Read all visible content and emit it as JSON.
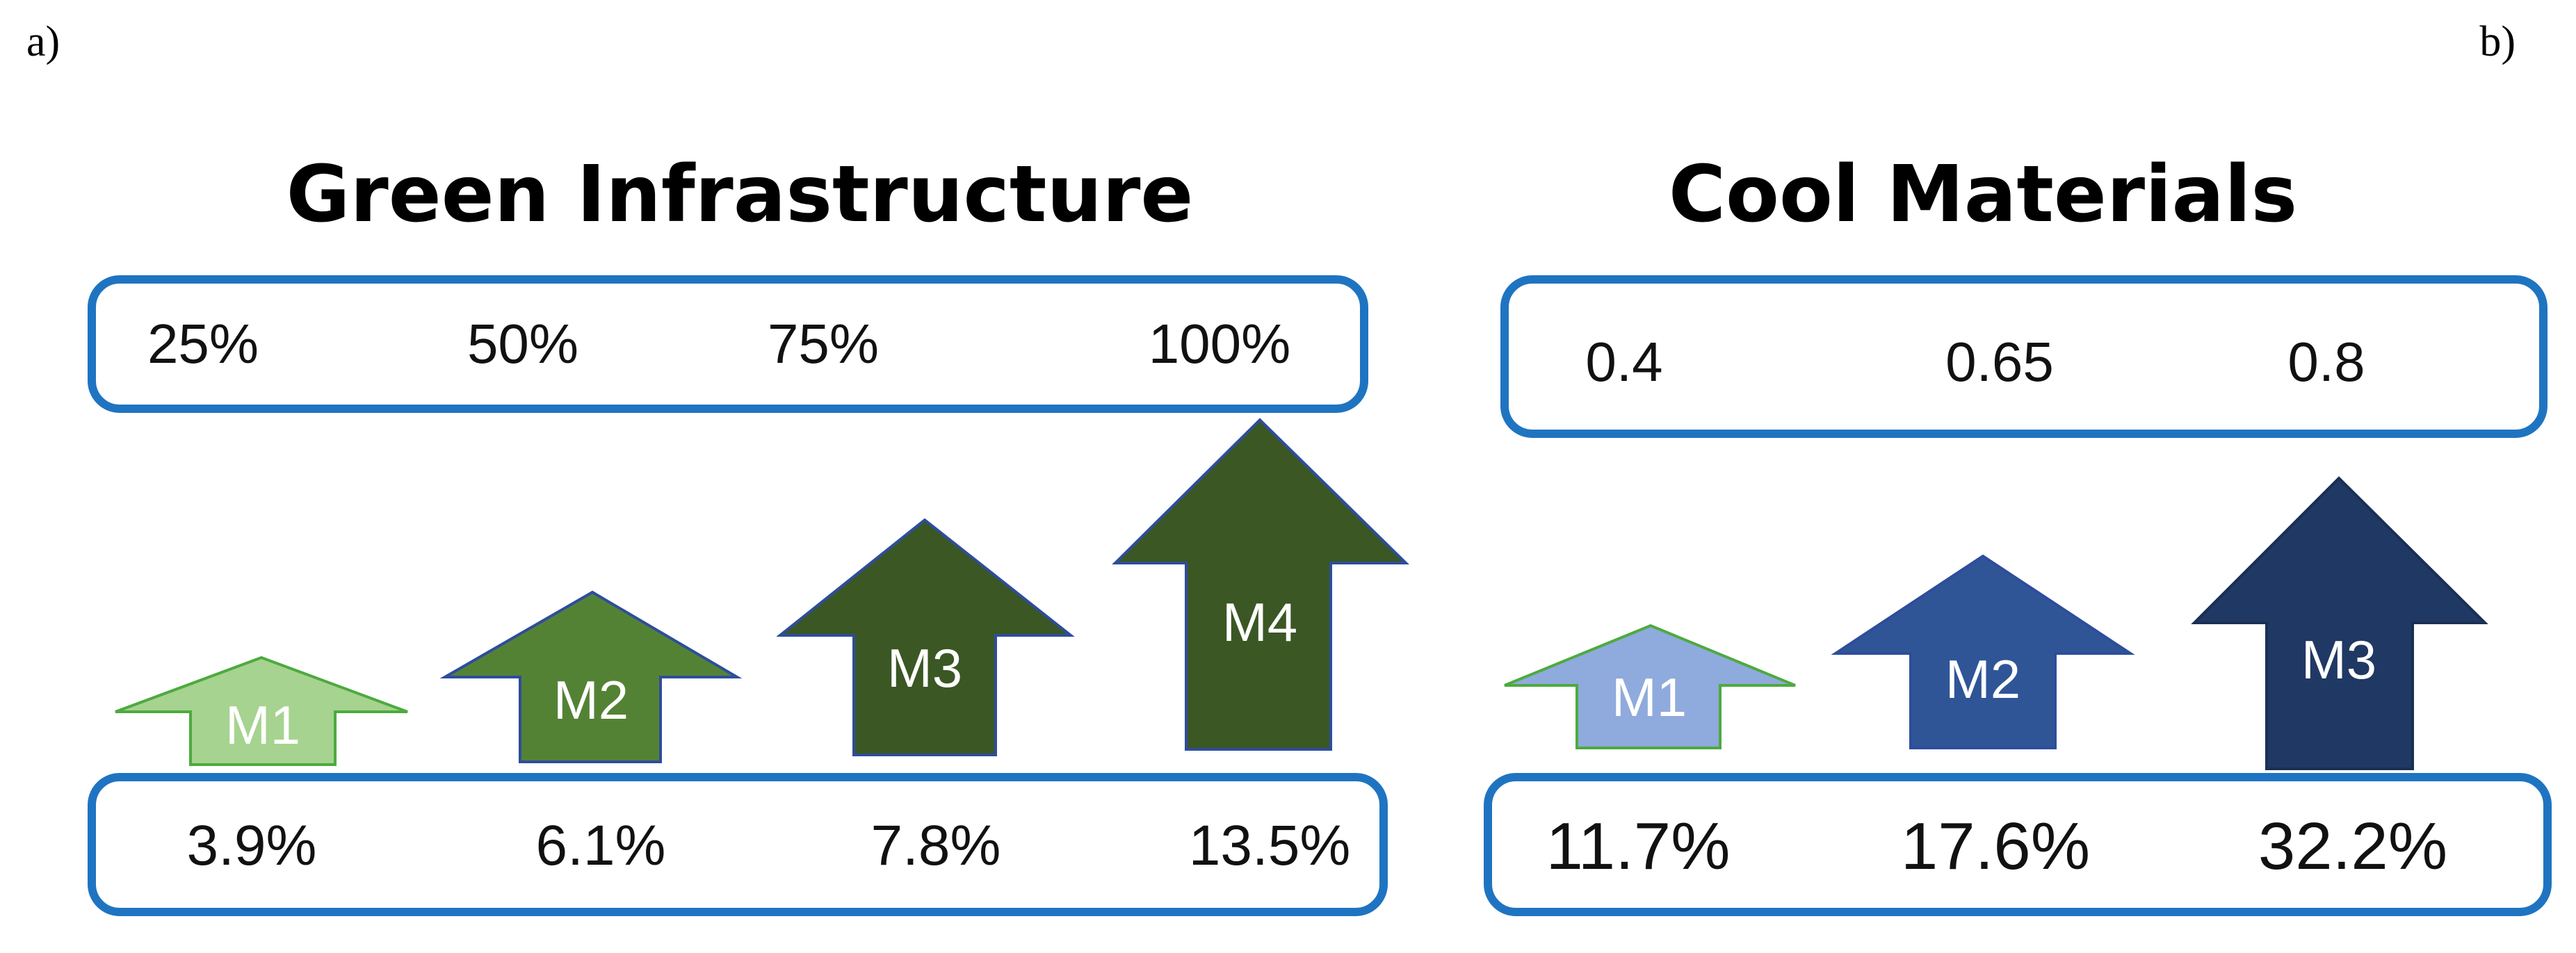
{
  "panels": [
    {
      "label": "a)",
      "title": "Green Infrastructure",
      "levels": [
        "25%",
        "50%",
        "75%",
        "100%"
      ],
      "arrows": [
        {
          "label": "M1",
          "color": "#a6d38f",
          "border": "#4daa3f"
        },
        {
          "label": "M2",
          "color": "#548235",
          "border": "#2e4d9c"
        },
        {
          "label": "M3",
          "color": "#3a5724",
          "border": "#2e4d9c"
        },
        {
          "label": "M4",
          "color": "#3a5724",
          "border": "#2e4d9c"
        }
      ],
      "results": [
        "3.9%",
        "6.1%",
        "7.8%",
        "13.5%"
      ]
    },
    {
      "label": "b)",
      "title": "Cool Materials",
      "levels": [
        "0.4",
        "0.65",
        "0.8"
      ],
      "arrows": [
        {
          "label": "M1",
          "color": "#8faadc",
          "border": "#4daa3f"
        },
        {
          "label": "M2",
          "color": "#2f5597",
          "border": "#2e4d9c"
        },
        {
          "label": "M3",
          "color": "#203864",
          "border": "#1a2f55"
        }
      ],
      "results": [
        "11.7%",
        "17.6%",
        "32.2%"
      ]
    }
  ],
  "colors": {
    "box_border": "#1f74c1",
    "text": "#111111",
    "arrow_text": "#ffffff"
  }
}
